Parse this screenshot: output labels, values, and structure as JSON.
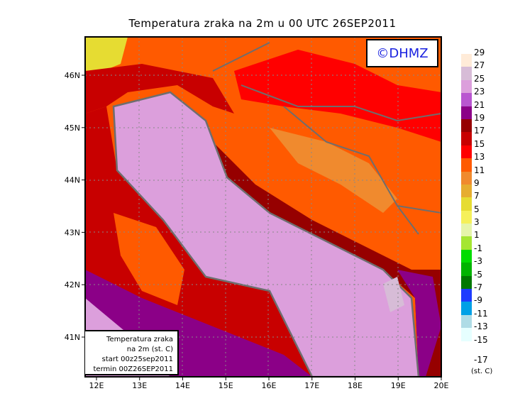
{
  "title": "Temperatura zraka na 2m u 00 UTC 26SEP2011",
  "logo": "©DHMZ",
  "info_box": [
    "Temperatura zraka",
    "na 2m (st. C)",
    "start 00z25sep2011",
    "termin 00Z26SEP2011"
  ],
  "x_ticks": [
    "12E",
    "13E",
    "14E",
    "15E",
    "16E",
    "17E",
    "18E",
    "19E",
    "20E"
  ],
  "y_ticks": [
    "46N",
    "45N",
    "44N",
    "43N",
    "42N",
    "41N"
  ],
  "colorbar": {
    "unit": "(st. C)",
    "bottom_label": "-17",
    "levels": [
      {
        "label": "29",
        "color": "#ffebd8"
      },
      {
        "label": "27",
        "color": "#d7bcd7"
      },
      {
        "label": "25",
        "color": "#dc9fdc"
      },
      {
        "label": "23",
        "color": "#b956d0"
      },
      {
        "label": "21",
        "color": "#8b0087"
      },
      {
        "label": "19",
        "color": "#960000"
      },
      {
        "label": "17",
        "color": "#c80000"
      },
      {
        "label": "15",
        "color": "#ff0000"
      },
      {
        "label": "13",
        "color": "#ff5a00"
      },
      {
        "label": "11",
        "color": "#f08a2e"
      },
      {
        "label": "9",
        "color": "#e6ad30"
      },
      {
        "label": "7",
        "color": "#e6dc32"
      },
      {
        "label": "5",
        "color": "#f5f05a"
      },
      {
        "label": "3",
        "color": "#e6f5aa"
      },
      {
        "label": "1",
        "color": "#a5e632"
      },
      {
        "label": "-1",
        "color": "#00dc00"
      },
      {
        "label": "-3",
        "color": "#00b400"
      },
      {
        "label": "-5",
        "color": "#007800"
      },
      {
        "label": "-7",
        "color": "#1e3cff"
      },
      {
        "label": "-9",
        "color": "#00a0e6"
      },
      {
        "label": "-11",
        "color": "#afdce6"
      },
      {
        "label": "-13",
        "color": "#e6ffff"
      },
      {
        "label": "-15",
        "color": "#ffffff"
      }
    ]
  }
}
